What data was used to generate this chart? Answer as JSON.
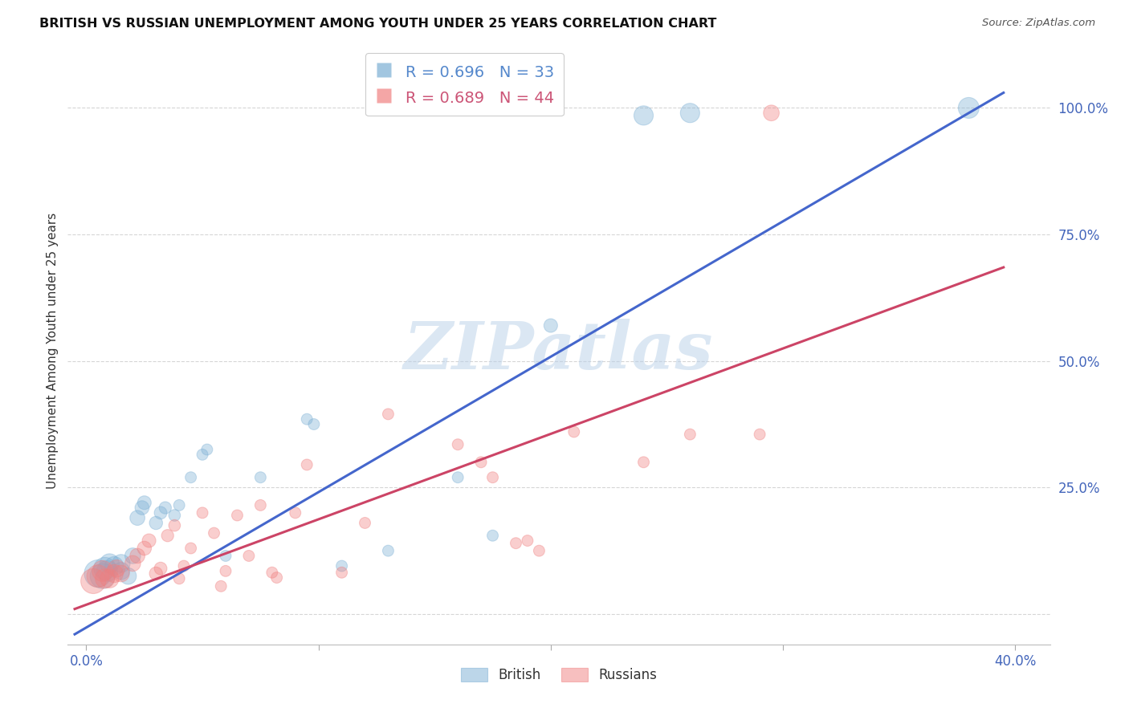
{
  "title": "BRITISH VS RUSSIAN UNEMPLOYMENT AMONG YOUTH UNDER 25 YEARS CORRELATION CHART",
  "source": "Source: ZipAtlas.com",
  "ylabel": "Unemployment Among Youth under 25 years",
  "background_color": "#ffffff",
  "grid_color": "#cccccc",
  "watermark_text": "ZIPatlas",
  "watermark_color": "#b8d0e8",
  "british_color": "#7bafd4",
  "russian_color": "#f08080",
  "legend_entries": [
    {
      "label": "R = 0.696   N = 33",
      "color": "#5588cc"
    },
    {
      "label": "R = 0.689   N = 44",
      "color": "#cc5577"
    }
  ],
  "british_line_color": "#4466cc",
  "russian_line_color": "#cc4466",
  "british_scatter": [
    [
      0.005,
      0.08
    ],
    [
      0.007,
      0.075
    ],
    [
      0.008,
      0.09
    ],
    [
      0.009,
      0.085
    ],
    [
      0.01,
      0.1
    ],
    [
      0.012,
      0.095
    ],
    [
      0.015,
      0.1
    ],
    [
      0.015,
      0.085
    ],
    [
      0.018,
      0.075
    ],
    [
      0.02,
      0.115
    ],
    [
      0.022,
      0.19
    ],
    [
      0.024,
      0.21
    ],
    [
      0.025,
      0.22
    ],
    [
      0.03,
      0.18
    ],
    [
      0.032,
      0.2
    ],
    [
      0.034,
      0.21
    ],
    [
      0.038,
      0.195
    ],
    [
      0.04,
      0.215
    ],
    [
      0.045,
      0.27
    ],
    [
      0.05,
      0.315
    ],
    [
      0.052,
      0.325
    ],
    [
      0.06,
      0.115
    ],
    [
      0.075,
      0.27
    ],
    [
      0.095,
      0.385
    ],
    [
      0.098,
      0.375
    ],
    [
      0.11,
      0.095
    ],
    [
      0.13,
      0.125
    ],
    [
      0.16,
      0.27
    ],
    [
      0.175,
      0.155
    ],
    [
      0.2,
      0.57
    ],
    [
      0.24,
      0.985
    ],
    [
      0.26,
      0.99
    ],
    [
      0.38,
      1.0
    ]
  ],
  "british_sizes": [
    600,
    500,
    400,
    350,
    300,
    280,
    260,
    240,
    220,
    200,
    180,
    160,
    150,
    140,
    130,
    120,
    110,
    100,
    100,
    100,
    100,
    100,
    100,
    100,
    100,
    100,
    100,
    100,
    100,
    150,
    300,
    300,
    350
  ],
  "russian_scatter": [
    [
      0.003,
      0.065
    ],
    [
      0.005,
      0.075
    ],
    [
      0.007,
      0.085
    ],
    [
      0.008,
      0.07
    ],
    [
      0.01,
      0.07
    ],
    [
      0.012,
      0.08
    ],
    [
      0.013,
      0.09
    ],
    [
      0.015,
      0.08
    ],
    [
      0.02,
      0.1
    ],
    [
      0.022,
      0.115
    ],
    [
      0.025,
      0.13
    ],
    [
      0.027,
      0.145
    ],
    [
      0.03,
      0.08
    ],
    [
      0.032,
      0.09
    ],
    [
      0.035,
      0.155
    ],
    [
      0.038,
      0.175
    ],
    [
      0.04,
      0.07
    ],
    [
      0.042,
      0.095
    ],
    [
      0.045,
      0.13
    ],
    [
      0.05,
      0.2
    ],
    [
      0.055,
      0.16
    ],
    [
      0.058,
      0.055
    ],
    [
      0.06,
      0.085
    ],
    [
      0.065,
      0.195
    ],
    [
      0.07,
      0.115
    ],
    [
      0.075,
      0.215
    ],
    [
      0.08,
      0.082
    ],
    [
      0.082,
      0.072
    ],
    [
      0.09,
      0.2
    ],
    [
      0.095,
      0.295
    ],
    [
      0.11,
      0.082
    ],
    [
      0.12,
      0.18
    ],
    [
      0.13,
      0.395
    ],
    [
      0.16,
      0.335
    ],
    [
      0.17,
      0.3
    ],
    [
      0.175,
      0.27
    ],
    [
      0.185,
      0.14
    ],
    [
      0.19,
      0.145
    ],
    [
      0.195,
      0.125
    ],
    [
      0.21,
      0.36
    ],
    [
      0.24,
      0.3
    ],
    [
      0.26,
      0.355
    ],
    [
      0.29,
      0.355
    ],
    [
      0.295,
      0.99
    ]
  ],
  "russian_sizes": [
    500,
    400,
    350,
    300,
    280,
    260,
    240,
    220,
    200,
    180,
    160,
    150,
    140,
    130,
    120,
    110,
    100,
    100,
    100,
    100,
    100,
    100,
    100,
    100,
    100,
    100,
    100,
    100,
    100,
    100,
    100,
    100,
    100,
    100,
    100,
    100,
    100,
    100,
    100,
    100,
    100,
    100,
    100,
    200
  ],
  "british_line": {
    "x0": -0.005,
    "y0": -0.04,
    "x1": 0.395,
    "y1": 1.03
  },
  "russian_line": {
    "x0": -0.005,
    "y0": 0.01,
    "x1": 0.395,
    "y1": 0.685
  },
  "xlim": [
    -0.008,
    0.415
  ],
  "ylim": [
    -0.06,
    1.1
  ],
  "x_tick_positions": [
    0.0,
    0.1,
    0.2,
    0.3,
    0.4
  ],
  "y_tick_positions": [
    0.0,
    0.25,
    0.5,
    0.75,
    1.0
  ],
  "x_tick_labels_show": [
    "0.0%",
    "",
    "",
    "",
    "40.0%"
  ],
  "y_tick_labels_show": [
    "",
    "25.0%",
    "50.0%",
    "75.0%",
    "100.0%"
  ]
}
